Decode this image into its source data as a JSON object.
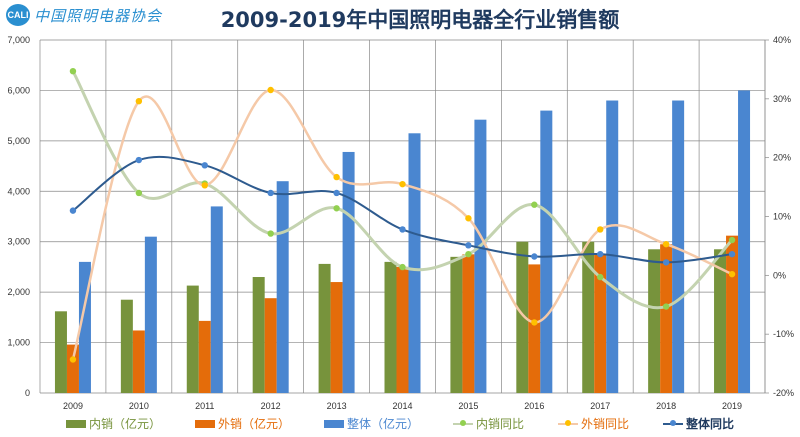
{
  "logo": {
    "mark": "CALI",
    "text": "中国照明电器协会"
  },
  "colors": {
    "domestic": "#77933c",
    "export": "#e46c0a",
    "total": "#4a86d0",
    "domestic_yoy": "#92d050",
    "domestic_yoy_line": "#c4d3b0",
    "export_yoy": "#ffc000",
    "export_yoy_line": "#f5c9a8",
    "total_yoy": "#2e5b8f",
    "total_yoy_marker": "#4a86d0",
    "grid": "#888888"
  },
  "chart_data": {
    "type": "bar+line",
    "title": "2009-2019年中国照明电器全行业销售额",
    "categories": [
      "2009",
      "2010",
      "2011",
      "2012",
      "2013",
      "2014",
      "2015",
      "2016",
      "2017",
      "2018",
      "2019"
    ],
    "y_left": {
      "range": [
        0,
        7000
      ],
      "ticks": [
        "0",
        "1,000",
        "2,000",
        "3,000",
        "4,000",
        "5,000",
        "6,000",
        "7,000"
      ]
    },
    "y_right": {
      "range": [
        -20,
        40
      ],
      "unit": "%",
      "ticks": [
        "-20%",
        "-10%",
        "0%",
        "10%",
        "20%",
        "30%",
        "40%"
      ]
    },
    "grid": true,
    "legend_position": "bottom",
    "bar_series": [
      {
        "name": "内销（亿元）",
        "values": [
          1620,
          1850,
          2130,
          2300,
          2560,
          2600,
          2700,
          3000,
          3000,
          2850,
          2850
        ]
      },
      {
        "name": "外销（亿元）",
        "values": [
          960,
          1240,
          1430,
          1880,
          2200,
          2500,
          2750,
          2550,
          2750,
          2950,
          3120
        ]
      },
      {
        "name": "整体（亿元）",
        "values": [
          2600,
          3100,
          3700,
          4200,
          4780,
          5150,
          5420,
          5600,
          5800,
          5800,
          6000
        ]
      }
    ],
    "line_series": [
      {
        "name": "内销同比",
        "values": [
          34.7,
          14.0,
          15.6,
          7.1,
          11.4,
          1.4,
          3.6,
          12.0,
          -0.3,
          -5.3,
          6.0
        ]
      },
      {
        "name": "外销同比",
        "values": [
          -14.3,
          29.6,
          15.3,
          31.5,
          16.7,
          15.5,
          9.7,
          -8.0,
          7.8,
          5.3,
          0.2
        ]
      },
      {
        "name": "整体同比",
        "values": [
          11.0,
          19.6,
          18.7,
          14.0,
          14.0,
          7.8,
          5.1,
          3.2,
          3.6,
          2.2,
          3.6
        ]
      }
    ]
  }
}
